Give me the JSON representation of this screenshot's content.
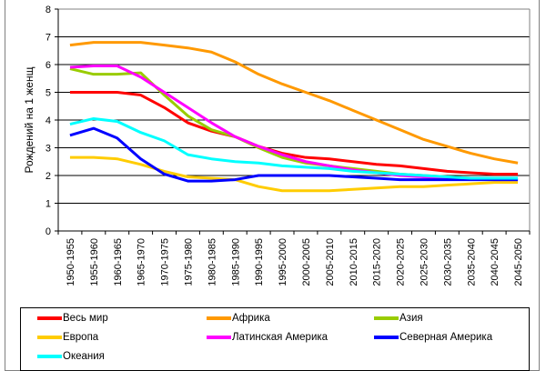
{
  "chart_data": {
    "type": "line",
    "title": "",
    "xlabel": "",
    "ylabel": "Рождений на 1 женщ",
    "ylim": [
      0,
      8
    ],
    "yticks": [
      "0",
      "1",
      "2",
      "3",
      "4",
      "5",
      "6",
      "7",
      "8"
    ],
    "grid": true,
    "legend_position": "bottom",
    "categories": [
      "1950-1955",
      "1955-1960",
      "1960-1965",
      "1965-1970",
      "1970-1975",
      "1975-1980",
      "1980-1985",
      "1985-1990",
      "1990-1995",
      "1995-2000",
      "2000-2005",
      "2005-2010",
      "2010-2015",
      "2015-2020",
      "2020-2025",
      "2025-2030",
      "2030-2035",
      "2035-2040",
      "2040-2045",
      "2045-2050"
    ],
    "series": [
      {
        "name": "Весь мир",
        "color": "#ff0000",
        "values": [
          5.0,
          5.0,
          5.0,
          4.9,
          4.45,
          3.9,
          3.6,
          3.4,
          3.05,
          2.8,
          2.65,
          2.6,
          2.5,
          2.4,
          2.35,
          2.25,
          2.15,
          2.1,
          2.05,
          2.05
        ]
      },
      {
        "name": "Африка",
        "color": "#ff9900",
        "values": [
          6.7,
          6.8,
          6.8,
          6.8,
          6.7,
          6.6,
          6.45,
          6.1,
          5.65,
          5.3,
          5.0,
          4.7,
          4.35,
          4.0,
          3.65,
          3.3,
          3.05,
          2.8,
          2.6,
          2.45
        ]
      },
      {
        "name": "Азия",
        "color": "#99cc00",
        "values": [
          5.85,
          5.65,
          5.65,
          5.7,
          4.9,
          4.15,
          3.65,
          3.4,
          3.0,
          2.65,
          2.45,
          2.35,
          2.25,
          2.15,
          2.05,
          2.0,
          1.95,
          1.9,
          1.9,
          1.9
        ]
      },
      {
        "name": "Европа",
        "color": "#ffcc00",
        "values": [
          2.65,
          2.65,
          2.6,
          2.4,
          2.15,
          1.95,
          1.9,
          1.85,
          1.6,
          1.45,
          1.45,
          1.45,
          1.5,
          1.55,
          1.6,
          1.6,
          1.65,
          1.7,
          1.75,
          1.75
        ]
      },
      {
        "name": "Латинская Америка",
        "color": "#ff00ff",
        "values": [
          5.9,
          5.95,
          5.95,
          5.55,
          5.0,
          4.45,
          3.9,
          3.4,
          3.05,
          2.75,
          2.5,
          2.35,
          2.2,
          2.1,
          2.0,
          1.95,
          1.9,
          1.87,
          1.85,
          1.85
        ]
      },
      {
        "name": "Северная Америка",
        "color": "#0000ff",
        "values": [
          3.45,
          3.7,
          3.35,
          2.6,
          2.05,
          1.8,
          1.8,
          1.85,
          2.0,
          2.0,
          2.0,
          2.0,
          1.95,
          1.9,
          1.85,
          1.85,
          1.85,
          1.85,
          1.85,
          1.85
        ]
      },
      {
        "name": "Океания",
        "color": "#00ffff",
        "values": [
          3.85,
          4.05,
          3.95,
          3.55,
          3.25,
          2.75,
          2.6,
          2.5,
          2.45,
          2.35,
          2.3,
          2.25,
          2.15,
          2.1,
          2.05,
          2.0,
          1.95,
          1.9,
          1.9,
          1.9
        ]
      }
    ]
  }
}
